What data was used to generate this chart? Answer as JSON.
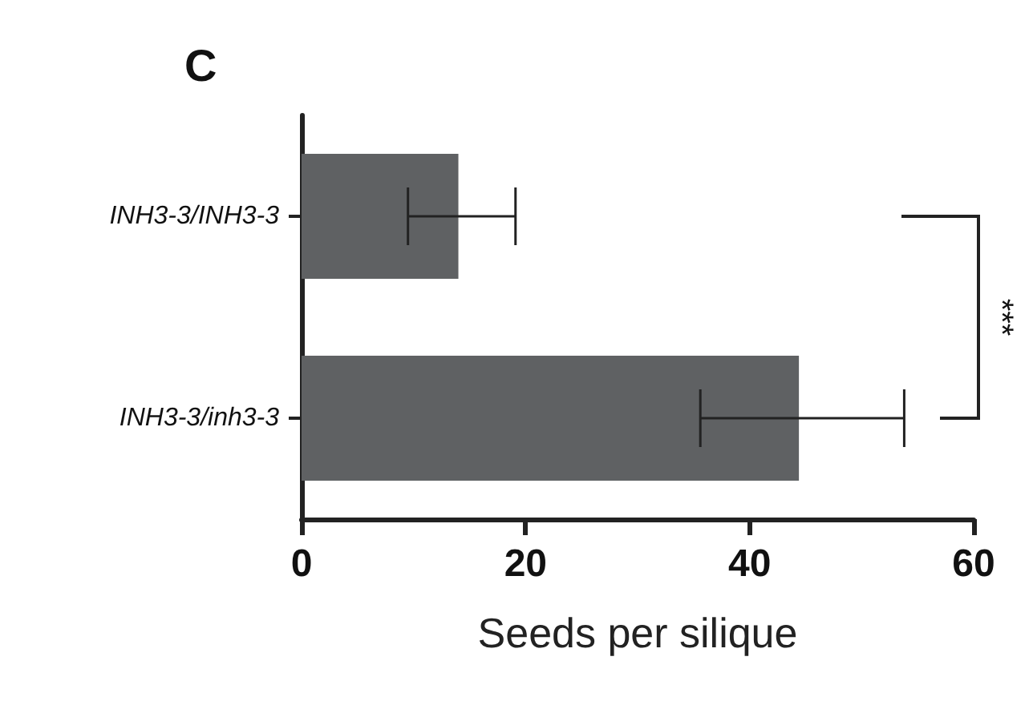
{
  "chart_data": {
    "type": "bar",
    "orientation": "horizontal",
    "title": "C",
    "xlabel": "Seeds per silique",
    "categories": [
      "INH3-3/INH3-3",
      "INH3-3/inh3-3"
    ],
    "values": [
      14.0,
      44.4
    ],
    "color": "#5f6163",
    "errors": [
      [
        9.5,
        19.1
      ],
      [
        35.6,
        53.8
      ]
    ],
    "xlim": [
      0,
      60
    ],
    "xticks": [
      0,
      20,
      40,
      60
    ],
    "grid": false,
    "annotations": [
      "***"
    ]
  }
}
